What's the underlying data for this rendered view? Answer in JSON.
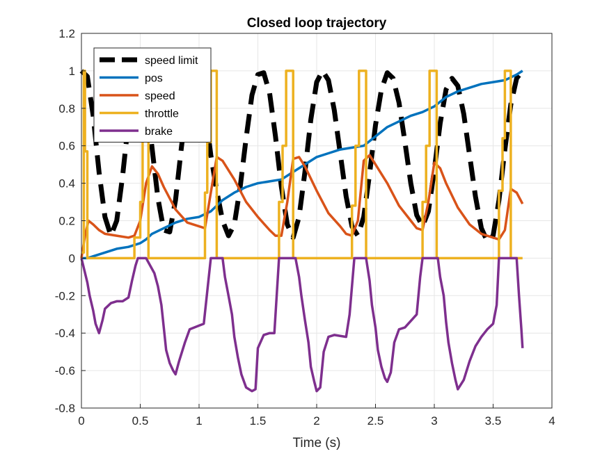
{
  "chart_data": {
    "type": "line",
    "title": "Closed loop trajectory",
    "xlabel": "Time (s)",
    "ylabel": "",
    "xlim": [
      0,
      4
    ],
    "ylim": [
      -0.8,
      1.2
    ],
    "xticks": [
      0,
      0.5,
      1,
      1.5,
      2,
      2.5,
      3,
      3.5,
      4
    ],
    "xtick_labels": [
      "0",
      "0.5",
      "1",
      "1.5",
      "2",
      "2.5",
      "3",
      "3.5",
      "4"
    ],
    "yticks": [
      -0.8,
      -0.6,
      -0.4,
      -0.2,
      0,
      0.2,
      0.4,
      0.6,
      0.8,
      1,
      1.2
    ],
    "ytick_labels": [
      "-0.8",
      "-0.6",
      "-0.4",
      "-0.2",
      "0",
      "0.2",
      "0.4",
      "0.6",
      "0.8",
      "1",
      "1.2"
    ],
    "grid": true,
    "legend_position": "top-left",
    "series": [
      {
        "name": "speed limit",
        "color": "#000000",
        "style": "dashed",
        "x": [
          0,
          0.05,
          0.1,
          0.15,
          0.2,
          0.25,
          0.3,
          0.35,
          0.4,
          0.45,
          0.5,
          0.55,
          0.6,
          0.65,
          0.7,
          0.75,
          0.8,
          0.85,
          0.9,
          0.95,
          1.0,
          1.05,
          1.1,
          1.15,
          1.2,
          1.25,
          1.3,
          1.35,
          1.4,
          1.45,
          1.5,
          1.55,
          1.6,
          1.65,
          1.7,
          1.75,
          1.8,
          1.85,
          1.9,
          1.95,
          2.0,
          2.05,
          2.1,
          2.15,
          2.2,
          2.25,
          2.3,
          2.35,
          2.4,
          2.45,
          2.5,
          2.55,
          2.6,
          2.65,
          2.7,
          2.75,
          2.8,
          2.85,
          2.9,
          2.95,
          3.0,
          3.05,
          3.1,
          3.15,
          3.2,
          3.25,
          3.3,
          3.35,
          3.4,
          3.45,
          3.5,
          3.55,
          3.6,
          3.65,
          3.7,
          3.75
        ],
        "y": [
          1.0,
          0.97,
          0.76,
          0.46,
          0.22,
          0.12,
          0.2,
          0.44,
          0.73,
          0.94,
          0.99,
          0.86,
          0.59,
          0.32,
          0.15,
          0.14,
          0.31,
          0.59,
          0.85,
          0.98,
          0.97,
          0.8,
          0.55,
          0.36,
          0.2,
          0.12,
          0.18,
          0.38,
          0.64,
          0.87,
          0.98,
          0.99,
          0.88,
          0.65,
          0.38,
          0.18,
          0.11,
          0.22,
          0.46,
          0.74,
          0.94,
          1.0,
          0.95,
          0.79,
          0.56,
          0.33,
          0.17,
          0.12,
          0.22,
          0.45,
          0.71,
          0.9,
          0.99,
          0.96,
          0.83,
          0.62,
          0.4,
          0.23,
          0.17,
          0.25,
          0.47,
          0.72,
          0.9,
          0.96,
          0.92,
          0.77,
          0.55,
          0.33,
          0.16,
          0.09,
          0.12,
          0.31,
          0.58,
          0.82,
          0.96,
          1.0
        ]
      },
      {
        "name": "pos",
        "color": "#0072BD",
        "style": "solid",
        "x": [
          0,
          0.05,
          0.1,
          0.2,
          0.3,
          0.4,
          0.5,
          0.55,
          0.6,
          0.7,
          0.8,
          0.9,
          1.0,
          1.1,
          1.2,
          1.3,
          1.4,
          1.5,
          1.6,
          1.7,
          1.8,
          1.9,
          2.0,
          2.1,
          2.2,
          2.3,
          2.4,
          2.5,
          2.6,
          2.7,
          2.8,
          2.9,
          3.0,
          3.1,
          3.2,
          3.3,
          3.4,
          3.5,
          3.6,
          3.7,
          3.75
        ],
        "y": [
          0.0,
          0.0,
          0.01,
          0.03,
          0.05,
          0.06,
          0.08,
          0.1,
          0.13,
          0.16,
          0.19,
          0.21,
          0.22,
          0.25,
          0.31,
          0.35,
          0.38,
          0.4,
          0.41,
          0.42,
          0.46,
          0.5,
          0.54,
          0.56,
          0.58,
          0.59,
          0.6,
          0.65,
          0.7,
          0.73,
          0.76,
          0.78,
          0.81,
          0.86,
          0.89,
          0.91,
          0.93,
          0.94,
          0.95,
          0.98,
          1.0
        ]
      },
      {
        "name": "speed",
        "color": "#D95319",
        "style": "solid",
        "x": [
          0,
          0.03,
          0.06,
          0.1,
          0.15,
          0.2,
          0.3,
          0.4,
          0.45,
          0.5,
          0.55,
          0.6,
          0.65,
          0.7,
          0.8,
          0.9,
          1.0,
          1.05,
          1.1,
          1.15,
          1.2,
          1.3,
          1.4,
          1.5,
          1.6,
          1.65,
          1.7,
          1.75,
          1.8,
          1.85,
          1.9,
          2.0,
          2.1,
          2.2,
          2.25,
          2.3,
          2.35,
          2.4,
          2.45,
          2.5,
          2.6,
          2.7,
          2.8,
          2.85,
          2.9,
          2.95,
          3.0,
          3.05,
          3.1,
          3.2,
          3.3,
          3.4,
          3.5,
          3.55,
          3.6,
          3.65,
          3.7,
          3.75
        ],
        "y": [
          0.0,
          0.12,
          0.2,
          0.18,
          0.15,
          0.13,
          0.12,
          0.11,
          0.12,
          0.2,
          0.4,
          0.49,
          0.45,
          0.38,
          0.26,
          0.19,
          0.17,
          0.16,
          0.35,
          0.54,
          0.52,
          0.42,
          0.3,
          0.22,
          0.15,
          0.12,
          0.12,
          0.3,
          0.53,
          0.54,
          0.49,
          0.36,
          0.24,
          0.17,
          0.13,
          0.12,
          0.2,
          0.52,
          0.55,
          0.5,
          0.4,
          0.28,
          0.2,
          0.16,
          0.15,
          0.3,
          0.51,
          0.48,
          0.4,
          0.27,
          0.18,
          0.13,
          0.11,
          0.1,
          0.15,
          0.37,
          0.35,
          0.29
        ]
      },
      {
        "name": "throttle",
        "color": "#EDB120",
        "style": "step",
        "x": [
          0,
          0.02,
          0.02,
          0.03,
          0.03,
          0.05,
          0.05,
          0.45,
          0.45,
          0.5,
          0.5,
          0.52,
          0.52,
          0.55,
          0.55,
          0.57,
          0.57,
          1.05,
          1.05,
          1.07,
          1.07,
          1.1,
          1.1,
          1.15,
          1.15,
          1.68,
          1.68,
          1.71,
          1.71,
          1.74,
          1.74,
          1.8,
          1.8,
          2.3,
          2.3,
          2.33,
          2.33,
          2.36,
          2.36,
          2.42,
          2.42,
          2.9,
          2.9,
          2.93,
          2.93,
          2.96,
          2.96,
          3.02,
          3.02,
          3.55,
          3.55,
          3.58,
          3.58,
          3.6,
          3.6,
          3.65,
          3.65,
          3.75
        ],
        "y": [
          0.03,
          0.03,
          1.0,
          1.0,
          0.57,
          0.57,
          0.0,
          0.0,
          0.11,
          0.11,
          0.3,
          0.3,
          0.63,
          0.63,
          1.0,
          1.0,
          0.0,
          0.0,
          0.35,
          0.35,
          0.62,
          0.62,
          1.0,
          1.0,
          0.0,
          0.0,
          0.3,
          0.3,
          0.6,
          0.6,
          1.0,
          1.0,
          0.0,
          0.0,
          0.28,
          0.28,
          0.6,
          0.6,
          1.0,
          1.0,
          0.0,
          0.0,
          0.3,
          0.3,
          0.6,
          0.6,
          1.0,
          1.0,
          0.0,
          0.0,
          0.36,
          0.36,
          0.64,
          0.64,
          1.0,
          1.0,
          0.0,
          0.0
        ]
      },
      {
        "name": "brake",
        "color": "#7E2F8E",
        "style": "step",
        "x": [
          0,
          0.05,
          0.07,
          0.1,
          0.12,
          0.15,
          0.18,
          0.2,
          0.25,
          0.3,
          0.35,
          0.4,
          0.43,
          0.46,
          0.48,
          0.55,
          0.62,
          0.65,
          0.68,
          0.7,
          0.72,
          0.75,
          0.78,
          0.8,
          0.83,
          0.88,
          0.92,
          1.0,
          1.04,
          1.1,
          1.2,
          1.22,
          1.25,
          1.28,
          1.3,
          1.33,
          1.36,
          1.4,
          1.45,
          1.48,
          1.5,
          1.55,
          1.6,
          1.64,
          1.68,
          1.82,
          1.85,
          1.87,
          1.9,
          1.93,
          1.95,
          1.98,
          2.0,
          2.03,
          2.06,
          2.1,
          2.15,
          2.25,
          2.28,
          2.32,
          2.42,
          2.45,
          2.47,
          2.5,
          2.52,
          2.55,
          2.58,
          2.6,
          2.63,
          2.66,
          2.7,
          2.75,
          2.85,
          2.88,
          2.9,
          3.03,
          3.05,
          3.08,
          3.1,
          3.12,
          3.15,
          3.18,
          3.2,
          3.25,
          3.3,
          3.35,
          3.4,
          3.45,
          3.5,
          3.53,
          3.55,
          3.7,
          3.72,
          3.74,
          3.75
        ],
        "y": [
          0.0,
          -0.13,
          -0.2,
          -0.28,
          -0.35,
          -0.4,
          -0.33,
          -0.27,
          -0.24,
          -0.23,
          -0.23,
          -0.21,
          -0.12,
          -0.04,
          0.0,
          0.0,
          -0.08,
          -0.15,
          -0.25,
          -0.37,
          -0.49,
          -0.56,
          -0.6,
          -0.62,
          -0.55,
          -0.45,
          -0.38,
          -0.36,
          -0.35,
          0.0,
          0.0,
          -0.1,
          -0.2,
          -0.3,
          -0.42,
          -0.53,
          -0.62,
          -0.69,
          -0.71,
          -0.7,
          -0.48,
          -0.41,
          -0.4,
          -0.4,
          0.0,
          0.0,
          -0.1,
          -0.2,
          -0.33,
          -0.45,
          -0.58,
          -0.66,
          -0.71,
          -0.69,
          -0.5,
          -0.42,
          -0.41,
          -0.42,
          -0.3,
          0.0,
          0.0,
          -0.12,
          -0.25,
          -0.37,
          -0.49,
          -0.58,
          -0.64,
          -0.66,
          -0.61,
          -0.45,
          -0.38,
          -0.37,
          -0.3,
          -0.1,
          0.0,
          0.0,
          -0.1,
          -0.2,
          -0.34,
          -0.45,
          -0.56,
          -0.65,
          -0.7,
          -0.65,
          -0.55,
          -0.47,
          -0.42,
          -0.38,
          -0.35,
          -0.25,
          0.0,
          0.0,
          -0.2,
          -0.38,
          -0.48
        ]
      }
    ]
  }
}
